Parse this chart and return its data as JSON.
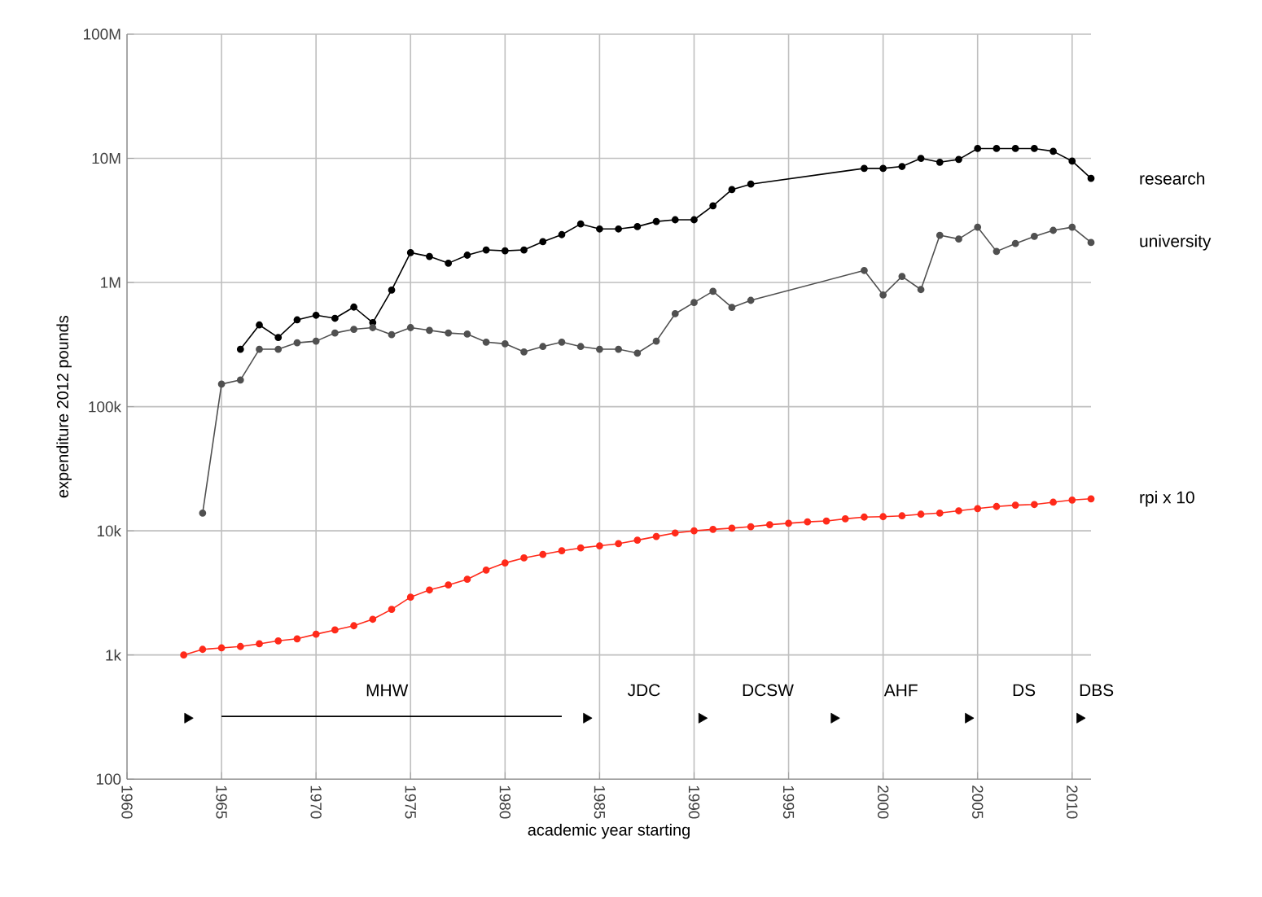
{
  "chart_data": {
    "type": "line",
    "xlabel": "academic year starting",
    "ylabel": "expenditure 2012 pounds",
    "log": "y",
    "grid": true,
    "legend": false,
    "xlim": [
      1960,
      2011
    ],
    "ylim": [
      100,
      100000000
    ],
    "xticks": [
      1960,
      1965,
      1970,
      1975,
      1980,
      1985,
      1990,
      1995,
      2000,
      2005,
      2010
    ],
    "yticks": [
      {
        "value": 100,
        "label": "100"
      },
      {
        "value": 1000,
        "label": "1k"
      },
      {
        "value": 10000,
        "label": "10k"
      },
      {
        "value": 100000,
        "label": "100k"
      },
      {
        "value": 1000000,
        "label": "1M"
      },
      {
        "value": 10000000,
        "label": "10M"
      },
      {
        "value": 100000000,
        "label": "100M"
      }
    ],
    "series": [
      {
        "name": "research",
        "marker": "circle",
        "color": "#000000",
        "x": [
          1966,
          1967,
          1968,
          1969,
          1970,
          1971,
          1972,
          1973,
          1974,
          1975,
          1976,
          1977,
          1978,
          1979,
          1980,
          1981,
          1982,
          1983,
          1984,
          1985,
          1986,
          1987,
          1988,
          1989,
          1990,
          1991,
          1992,
          1993,
          1999,
          2000,
          2001,
          2002,
          2003,
          2004,
          2005,
          2006,
          2007,
          2008,
          2009,
          2010,
          2011
        ],
        "values": [
          290000,
          455000,
          361000,
          500000,
          545000,
          515000,
          634000,
          475000,
          870000,
          1740000,
          1620000,
          1430000,
          1660000,
          1830000,
          1800000,
          1830000,
          2130000,
          2430000,
          2960000,
          2700000,
          2700000,
          2820000,
          3100000,
          3200000,
          3200000,
          4150000,
          5600000,
          6200000,
          8300000,
          8300000,
          8600000,
          10000000,
          9300000,
          9800000,
          12000000,
          12000000,
          12000000,
          12000000,
          11400000,
          9500000,
          6900000
        ]
      },
      {
        "name": "university",
        "marker": "circle",
        "color": "#505050",
        "x": [
          1964,
          1965,
          1966,
          1967,
          1968,
          1969,
          1970,
          1971,
          1972,
          1973,
          1974,
          1975,
          1976,
          1977,
          1978,
          1979,
          1980,
          1981,
          1982,
          1983,
          1984,
          1985,
          1986,
          1987,
          1988,
          1989,
          1990,
          1991,
          1992,
          1993,
          1999,
          2000,
          2001,
          2002,
          2003,
          2004,
          2005,
          2006,
          2007,
          2008,
          2009,
          2010,
          2011
        ],
        "values": [
          13900,
          152000,
          164000,
          290000,
          290000,
          327000,
          337000,
          392000,
          420000,
          433000,
          380000,
          433000,
          412000,
          392000,
          384000,
          331000,
          321000,
          276000,
          305000,
          331000,
          305000,
          290000,
          290000,
          270000,
          337000,
          560000,
          690000,
          850000,
          630000,
          718000,
          1250000,
          794000,
          1120000,
          877000,
          2400000,
          2240000,
          2790000,
          1780000,
          2060000,
          2350000,
          2630000,
          2790000,
          2100000
        ]
      },
      {
        "name": "rpi x 10",
        "marker": "circle",
        "color": "#ff2a1a",
        "x": [
          1963,
          1964,
          1965,
          1966,
          1967,
          1968,
          1969,
          1970,
          1971,
          1972,
          1973,
          1974,
          1975,
          1976,
          1977,
          1978,
          1979,
          1980,
          1981,
          1982,
          1983,
          1984,
          1985,
          1986,
          1987,
          1988,
          1989,
          1990,
          1991,
          1992,
          1993,
          1994,
          1995,
          1996,
          1997,
          1998,
          1999,
          2000,
          2001,
          2002,
          2003,
          2004,
          2005,
          2006,
          2007,
          2008,
          2009,
          2010,
          2011
        ],
        "values": [
          1000,
          1110,
          1140,
          1170,
          1230,
          1300,
          1350,
          1470,
          1590,
          1720,
          1940,
          2330,
          2920,
          3340,
          3660,
          4070,
          4830,
          5510,
          6050,
          6460,
          6900,
          7280,
          7570,
          7880,
          8410,
          9000,
          9610,
          10000,
          10270,
          10500,
          10800,
          11200,
          11500,
          11800,
          12000,
          12500,
          12900,
          13000,
          13200,
          13600,
          13900,
          14500,
          15100,
          15700,
          16100,
          16300,
          17000,
          17700,
          18100
        ]
      },
      {
        "type": "scatter",
        "marker": "triangle",
        "color": "#000000",
        "x": [
          1963.2,
          1984.3,
          1990.4,
          1997.4,
          2004.5,
          2010.4
        ],
        "values": [
          310,
          310,
          310,
          310,
          310,
          310
        ]
      },
      {
        "type": "line",
        "marker": "none",
        "color": "#000000",
        "x": [
          1965,
          1983
        ],
        "values": [
          320,
          320
        ]
      }
    ],
    "annotations": [
      "MHW",
      "JDC",
      "DCSW",
      "AHF",
      "DS",
      "DBS"
    ]
  }
}
